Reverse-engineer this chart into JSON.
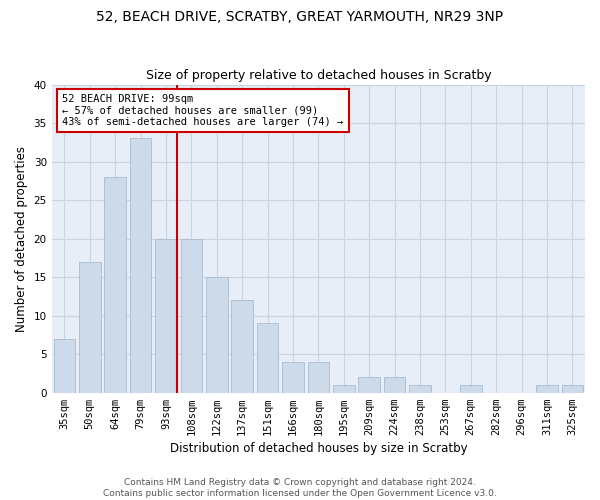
{
  "title1": "52, BEACH DRIVE, SCRATBY, GREAT YARMOUTH, NR29 3NP",
  "title2": "Size of property relative to detached houses in Scratby",
  "xlabel": "Distribution of detached houses by size in Scratby",
  "ylabel": "Number of detached properties",
  "categories": [
    "35sqm",
    "50sqm",
    "64sqm",
    "79sqm",
    "93sqm",
    "108sqm",
    "122sqm",
    "137sqm",
    "151sqm",
    "166sqm",
    "180sqm",
    "195sqm",
    "209sqm",
    "224sqm",
    "238sqm",
    "253sqm",
    "267sqm",
    "282sqm",
    "296sqm",
    "311sqm",
    "325sqm"
  ],
  "values": [
    7,
    17,
    28,
    33,
    20,
    20,
    15,
    12,
    9,
    4,
    4,
    1,
    2,
    2,
    1,
    0,
    1,
    0,
    0,
    1,
    1
  ],
  "bar_color": "#ccdaea",
  "bar_edgecolor": "#aabcce",
  "vline_x": 4.43,
  "vline_color": "#cc0000",
  "annotation_text": "52 BEACH DRIVE: 99sqm\n← 57% of detached houses are smaller (99)\n43% of semi-detached houses are larger (74) →",
  "annotation_box_edgecolor": "#cc0000",
  "annotation_box_facecolor": "#ffffff",
  "ylim": [
    0,
    40
  ],
  "yticks": [
    0,
    5,
    10,
    15,
    20,
    25,
    30,
    35,
    40
  ],
  "grid_color": "#c8d4e4",
  "background_color": "#e8eef8",
  "footer1": "Contains HM Land Registry data © Crown copyright and database right 2024.",
  "footer2": "Contains public sector information licensed under the Open Government Licence v3.0.",
  "title1_fontsize": 10,
  "title2_fontsize": 9,
  "tick_fontsize": 7.5,
  "ylabel_fontsize": 8.5,
  "xlabel_fontsize": 8.5,
  "annotation_fontsize": 7.5,
  "footer_fontsize": 6.5
}
